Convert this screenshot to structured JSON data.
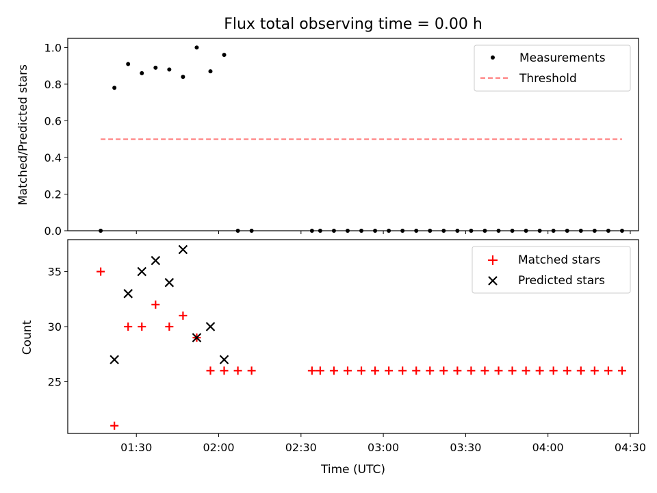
{
  "chart_data": [
    {
      "type": "scatter",
      "title": "Flux total observing time = 0.00 h",
      "xlabel": "",
      "ylabel": "Matched/Predicted stars",
      "ylim": [
        0,
        1.05
      ],
      "yticks": [
        0.0,
        0.2,
        0.4,
        0.6,
        0.8,
        1.0
      ],
      "ytick_labels": [
        "0.0",
        "0.2",
        "0.4",
        "0.6",
        "0.8",
        "1.0"
      ],
      "xlim": [
        "01:05",
        "04:33"
      ],
      "legend_position": "top-right",
      "series": [
        {
          "name": "Measurements",
          "color": "#000000",
          "marker": "dot",
          "x": [
            "01:17",
            "01:22",
            "01:27",
            "01:32",
            "01:37",
            "01:42",
            "01:47",
            "01:52",
            "01:57",
            "02:02",
            "02:07",
            "02:12",
            "02:34",
            "02:37",
            "02:42",
            "02:47",
            "02:52",
            "02:57",
            "03:02",
            "03:07",
            "03:12",
            "03:17",
            "03:22",
            "03:27",
            "03:32",
            "03:37",
            "03:42",
            "03:47",
            "03:52",
            "03:57",
            "04:02",
            "04:07",
            "04:12",
            "04:17",
            "04:22",
            "04:27"
          ],
          "y": [
            0.0,
            0.78,
            0.91,
            0.86,
            0.89,
            0.88,
            0.84,
            1.0,
            0.87,
            0.96,
            0.0,
            0.0,
            0.0,
            0.0,
            0.0,
            0.0,
            0.0,
            0.0,
            0.0,
            0.0,
            0.0,
            0.0,
            0.0,
            0.0,
            0.0,
            0.0,
            0.0,
            0.0,
            0.0,
            0.0,
            0.0,
            0.0,
            0.0,
            0.0,
            0.0,
            0.0
          ]
        },
        {
          "name": "Threshold",
          "color": "#ff7f7f",
          "style": "dashed",
          "x": [
            "01:17",
            "04:27"
          ],
          "y": [
            0.5,
            0.5
          ]
        }
      ]
    },
    {
      "type": "scatter",
      "title": "",
      "xlabel": "Time (UTC)",
      "ylabel": "Count",
      "ylim": [
        20.3,
        37.9
      ],
      "yticks": [
        25,
        30,
        35
      ],
      "ytick_labels": [
        "25",
        "30",
        "35"
      ],
      "xlim": [
        "01:05",
        "04:33"
      ],
      "xticks": [
        "01:30",
        "02:00",
        "02:30",
        "03:00",
        "03:30",
        "04:00",
        "04:30"
      ],
      "legend_position": "top-right",
      "series": [
        {
          "name": "Matched stars",
          "color": "#ff0000",
          "marker": "plus",
          "x": [
            "01:17",
            "01:22",
            "01:27",
            "01:32",
            "01:37",
            "01:42",
            "01:47",
            "01:52",
            "01:57",
            "02:02",
            "02:07",
            "02:12",
            "02:34",
            "02:37",
            "02:42",
            "02:47",
            "02:52",
            "02:57",
            "03:02",
            "03:07",
            "03:12",
            "03:17",
            "03:22",
            "03:27",
            "03:32",
            "03:37",
            "03:42",
            "03:47",
            "03:52",
            "03:57",
            "04:02",
            "04:07",
            "04:12",
            "04:17",
            "04:22",
            "04:27"
          ],
          "y": [
            35,
            21,
            30,
            30,
            32,
            30,
            31,
            29,
            26,
            26,
            26,
            26,
            26,
            26,
            26,
            26,
            26,
            26,
            26,
            26,
            26,
            26,
            26,
            26,
            26,
            26,
            26,
            26,
            26,
            26,
            26,
            26,
            26,
            26,
            26,
            26
          ]
        },
        {
          "name": "Predicted stars",
          "color": "#000000",
          "marker": "x",
          "x": [
            "01:22",
            "01:27",
            "01:32",
            "01:37",
            "01:42",
            "01:47",
            "01:52",
            "01:57",
            "02:02"
          ],
          "y": [
            27,
            33,
            35,
            36,
            34,
            37,
            29,
            30,
            27
          ]
        }
      ]
    }
  ]
}
